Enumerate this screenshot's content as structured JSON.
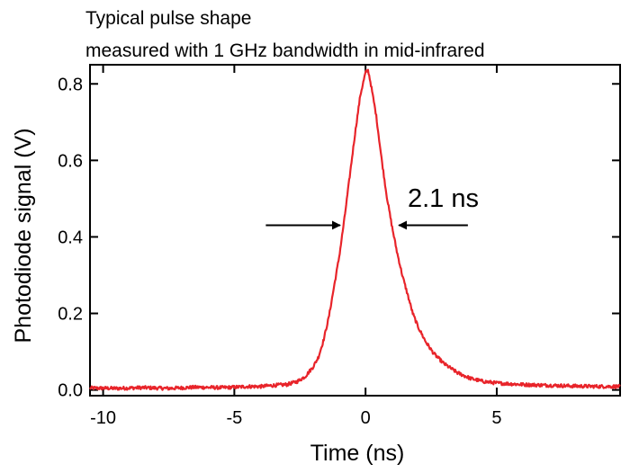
{
  "chart_data": {
    "type": "line",
    "title": [
      "Typical pulse shape",
      "measured with 1 GHz bandwidth in mid-infrared"
    ],
    "xlabel": "Time (ns)",
    "ylabel": "Photodiode signal (V)",
    "xlim": [
      -10.5,
      9.7
    ],
    "ylim": [
      -0.015,
      0.85
    ],
    "x_ticks": [
      {
        "value": -10,
        "label": "-10"
      },
      {
        "value": -5,
        "label": "-5"
      },
      {
        "value": 0,
        "label": "0"
      },
      {
        "value": 5,
        "label": "5"
      }
    ],
    "y_ticks": [
      {
        "value": 0.0,
        "label": "0.0"
      },
      {
        "value": 0.2,
        "label": "0.2"
      },
      {
        "value": 0.4,
        "label": "0.4"
      },
      {
        "value": 0.6,
        "label": "0.6"
      },
      {
        "value": 0.8,
        "label": "0.8"
      }
    ],
    "grid": false,
    "legend": "none",
    "series": [
      {
        "color": "#e8242a",
        "points": [
          [
            -10.5,
            0.005
          ],
          [
            -9.5,
            0.004
          ],
          [
            -8.5,
            0.006
          ],
          [
            -7.5,
            0.004
          ],
          [
            -6.5,
            0.007
          ],
          [
            -5.5,
            0.006
          ],
          [
            -5.0,
            0.007
          ],
          [
            -4.5,
            0.009
          ],
          [
            -4.0,
            0.009
          ],
          [
            -3.5,
            0.012
          ],
          [
            -3.0,
            0.014
          ],
          [
            -2.6,
            0.022
          ],
          [
            -2.3,
            0.035
          ],
          [
            -2.0,
            0.06
          ],
          [
            -1.8,
            0.085
          ],
          [
            -1.6,
            0.13
          ],
          [
            -1.4,
            0.19
          ],
          [
            -1.2,
            0.27
          ],
          [
            -1.0,
            0.35
          ],
          [
            -0.8,
            0.45
          ],
          [
            -0.6,
            0.56
          ],
          [
            -0.4,
            0.67
          ],
          [
            -0.2,
            0.77
          ],
          [
            0.0,
            0.83
          ],
          [
            0.1,
            0.835
          ],
          [
            0.2,
            0.8
          ],
          [
            0.4,
            0.72
          ],
          [
            0.6,
            0.61
          ],
          [
            0.8,
            0.51
          ],
          [
            1.0,
            0.43
          ],
          [
            1.2,
            0.36
          ],
          [
            1.4,
            0.3
          ],
          [
            1.6,
            0.25
          ],
          [
            1.8,
            0.2
          ],
          [
            2.0,
            0.165
          ],
          [
            2.3,
            0.125
          ],
          [
            2.6,
            0.095
          ],
          [
            3.0,
            0.068
          ],
          [
            3.5,
            0.045
          ],
          [
            4.0,
            0.03
          ],
          [
            4.5,
            0.022
          ],
          [
            5.0,
            0.018
          ],
          [
            6.0,
            0.014
          ],
          [
            7.0,
            0.012
          ],
          [
            8.0,
            0.01
          ],
          [
            9.0,
            0.009
          ],
          [
            9.7,
            0.009
          ]
        ]
      }
    ],
    "annotations": [
      {
        "text": "2.1 ns",
        "fwhm_left": -0.9,
        "fwhm_right": 1.2,
        "y": 0.4
      }
    ]
  }
}
